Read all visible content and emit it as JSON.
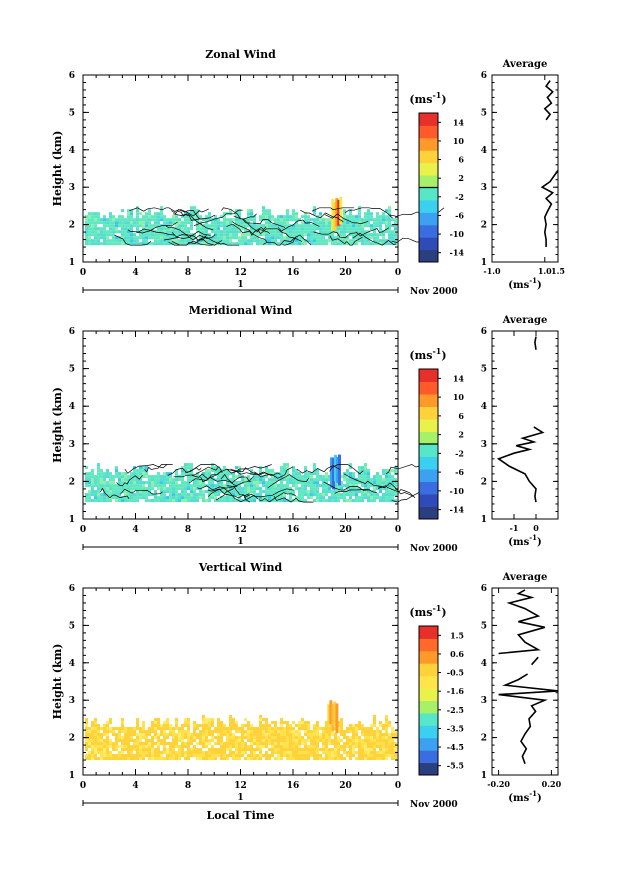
{
  "chart_data": [
    {
      "type": "heatmap",
      "title": "Zonal Wind",
      "ylabel": "Height (km)",
      "xlabel": "",
      "x_ticks": [
        "0",
        "4",
        "8",
        "12",
        "16",
        "20",
        "0"
      ],
      "y_ticks": [
        "1",
        "2",
        "3",
        "4",
        "5",
        "6"
      ],
      "xlim": [
        0,
        24
      ],
      "ylim": [
        1,
        6
      ],
      "date_axis": {
        "label": "1",
        "month_year": "Nov 2000"
      },
      "colorbar": {
        "unit": "(ms",
        "unit_exp": "-1",
        "unit_close": ")",
        "tick_labels": [
          "14",
          "10",
          "6",
          "2",
          "-2",
          "-6",
          "-10",
          "-14"
        ],
        "range": [
          -16,
          16
        ]
      },
      "data_extent": {
        "height_km": [
          1.45,
          2.45
        ],
        "time_h": [
          0,
          24
        ]
      },
      "features": [
        {
          "time_h": 19.3,
          "height_km": [
            1.9,
            2.8
          ],
          "value": 12
        }
      ],
      "average_profile": {
        "title": "Average",
        "xlabel": "(ms",
        "xlabel_exp": "-1",
        "xlabel_close": ")",
        "x_ticks": [
          "-1.0",
          "1.0",
          "1.5"
        ],
        "xlim": [
          -1.0,
          1.5
        ],
        "ylim": [
          1,
          6
        ],
        "y_ticks": [
          "1",
          "2",
          "3",
          "4",
          "5",
          "6"
        ],
        "points": [
          [
            1.05,
            1.4
          ],
          [
            1.05,
            1.6
          ],
          [
            1.0,
            1.8
          ],
          [
            1.05,
            2.0
          ],
          [
            1.0,
            2.2
          ],
          [
            1.1,
            2.35
          ],
          [
            1.25,
            2.55
          ],
          [
            1.05,
            2.7
          ],
          [
            1.3,
            2.85
          ],
          [
            0.9,
            3.0
          ],
          [
            1.2,
            3.15
          ],
          [
            1.35,
            3.3
          ],
          [
            1.55,
            3.45
          ],
          [
            null,
            null
          ],
          [
            0.95,
            4.2
          ],
          [
            null,
            null
          ],
          [
            1.05,
            4.8
          ],
          [
            1.2,
            4.95
          ],
          [
            1.0,
            5.1
          ],
          [
            1.25,
            5.25
          ],
          [
            1.1,
            5.4
          ],
          [
            1.3,
            5.55
          ],
          [
            1.05,
            5.7
          ],
          [
            1.2,
            5.85
          ]
        ]
      }
    },
    {
      "type": "heatmap",
      "title": "Meridional Wind",
      "ylabel": "Height (km)",
      "xlabel": "",
      "x_ticks": [
        "0",
        "4",
        "8",
        "12",
        "16",
        "20",
        "0"
      ],
      "y_ticks": [
        "1",
        "2",
        "3",
        "4",
        "5",
        "6"
      ],
      "xlim": [
        0,
        24
      ],
      "ylim": [
        1,
        6
      ],
      "date_axis": {
        "label": "1",
        "month_year": "Nov 2000"
      },
      "colorbar": {
        "unit": "(ms",
        "unit_exp": "-1",
        "unit_close": ")",
        "tick_labels": [
          "14",
          "10",
          "6",
          "2",
          "-2",
          "-6",
          "-10",
          "-14"
        ],
        "range": [
          -16,
          16
        ]
      },
      "data_extent": {
        "height_km": [
          1.45,
          2.45
        ],
        "time_h": [
          0,
          24
        ]
      },
      "features": [
        {
          "time_h": 19.2,
          "height_km": [
            1.9,
            2.8
          ],
          "value": -4
        }
      ],
      "average_profile": {
        "title": "Average",
        "xlabel": "(ms",
        "xlabel_exp": "-1",
        "xlabel_close": ")",
        "x_ticks": [
          "-1",
          "0"
        ],
        "xlim": [
          -2.0,
          1.0
        ],
        "ylim": [
          1,
          6
        ],
        "y_ticks": [
          "1",
          "2",
          "3",
          "4",
          "5",
          "6"
        ],
        "points": [
          [
            0.0,
            1.45
          ],
          [
            -0.05,
            1.6
          ],
          [
            0.0,
            1.8
          ],
          [
            -0.3,
            2.0
          ],
          [
            -0.5,
            2.2
          ],
          [
            -1.2,
            2.4
          ],
          [
            -1.7,
            2.6
          ],
          [
            -1.0,
            2.75
          ],
          [
            -0.3,
            2.85
          ],
          [
            -0.9,
            2.95
          ],
          [
            -0.1,
            3.05
          ],
          [
            -0.6,
            3.15
          ],
          [
            0.3,
            3.3
          ],
          [
            -0.1,
            3.45
          ],
          [
            null,
            null
          ],
          [
            0.0,
            5.5
          ],
          [
            -0.05,
            5.7
          ],
          [
            0.0,
            5.85
          ]
        ]
      }
    },
    {
      "type": "heatmap",
      "title": "Vertical Wind",
      "ylabel": "Height (km)",
      "xlabel": "Local Time",
      "x_ticks": [
        "0",
        "4",
        "8",
        "12",
        "16",
        "20",
        "0"
      ],
      "y_ticks": [
        "1",
        "2",
        "3",
        "4",
        "5",
        "6"
      ],
      "xlim": [
        0,
        24
      ],
      "ylim": [
        1,
        6
      ],
      "date_axis": {
        "label": "1",
        "month_year": "Nov 2000"
      },
      "colorbar": {
        "unit": "(ms",
        "unit_exp": "-1",
        "unit_close": ")",
        "tick_labels": [
          "1.5",
          "0.6",
          "-0.5",
          "-1.6",
          "-2.5",
          "-3.5",
          "-4.5",
          "-5.5"
        ],
        "range": [
          -6,
          2
        ]
      },
      "data_extent": {
        "height_km": [
          1.4,
          2.55
        ],
        "time_h": [
          0,
          24
        ]
      },
      "features": [
        {
          "time_h": 19.0,
          "height_km": [
            2.3,
            3.1
          ],
          "value": 0.9
        }
      ],
      "average_profile": {
        "title": "Average",
        "xlabel": "(ms",
        "xlabel_exp": "-1",
        "xlabel_close": ")",
        "x_ticks": [
          "-0.20",
          "0.20"
        ],
        "xlim": [
          -0.25,
          0.25
        ],
        "ylim": [
          1,
          6
        ],
        "y_ticks": [
          "1",
          "2",
          "3",
          "4",
          "5",
          "6"
        ],
        "points": [
          [
            0.0,
            1.3
          ],
          [
            -0.02,
            1.5
          ],
          [
            0.01,
            1.7
          ],
          [
            -0.03,
            1.9
          ],
          [
            0.0,
            2.1
          ],
          [
            0.04,
            2.3
          ],
          [
            0.03,
            2.5
          ],
          [
            0.08,
            2.7
          ],
          [
            0.05,
            2.85
          ],
          [
            0.15,
            3.0
          ],
          [
            -0.2,
            3.15
          ],
          [
            0.25,
            3.25
          ],
          [
            -0.15,
            3.4
          ],
          [
            -0.05,
            3.55
          ],
          [
            0.02,
            3.7
          ],
          [
            null,
            null
          ],
          [
            0.05,
            3.95
          ],
          [
            0.1,
            4.15
          ],
          [
            null,
            null
          ],
          [
            -0.2,
            4.25
          ],
          [
            0.1,
            4.35
          ],
          [
            0.0,
            4.55
          ],
          [
            -0.05,
            4.75
          ],
          [
            0.15,
            4.95
          ],
          [
            -0.05,
            5.1
          ],
          [
            0.1,
            5.25
          ],
          [
            0.0,
            5.45
          ],
          [
            -0.12,
            5.6
          ],
          [
            0.05,
            5.75
          ],
          [
            -0.05,
            5.85
          ],
          [
            0.0,
            5.95
          ]
        ]
      }
    }
  ]
}
